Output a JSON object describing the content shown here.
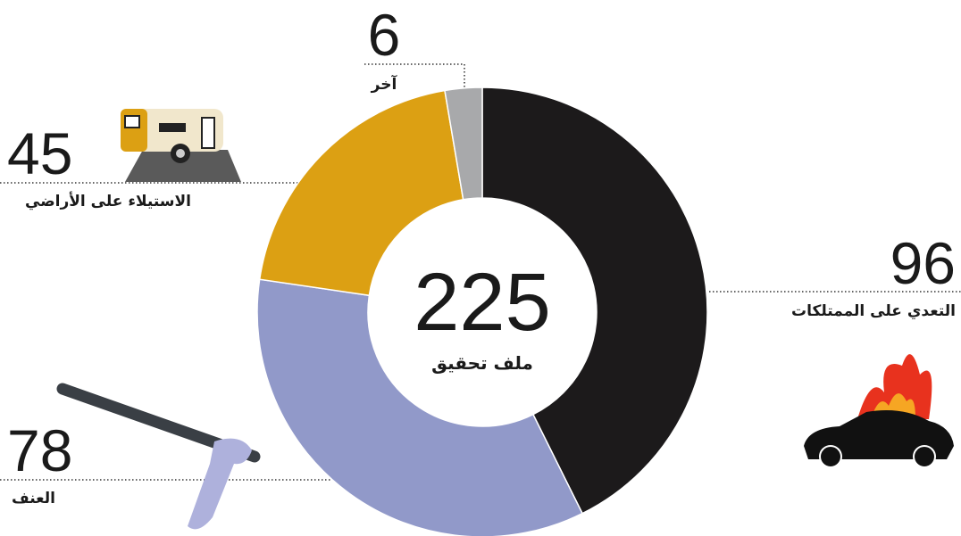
{
  "chart_data": {
    "type": "donut",
    "center_value": 225,
    "center_label": "ملف تحقيق",
    "categories": [
      "التعدي على الممتلكات",
      "العنف",
      "الاستيلاء على الأراضي",
      "آخر"
    ],
    "values": [
      96,
      78,
      45,
      6
    ],
    "colors": [
      "#1c1a1b",
      "#9199c9",
      "#dca013",
      "#a8a9ab"
    ]
  }
}
